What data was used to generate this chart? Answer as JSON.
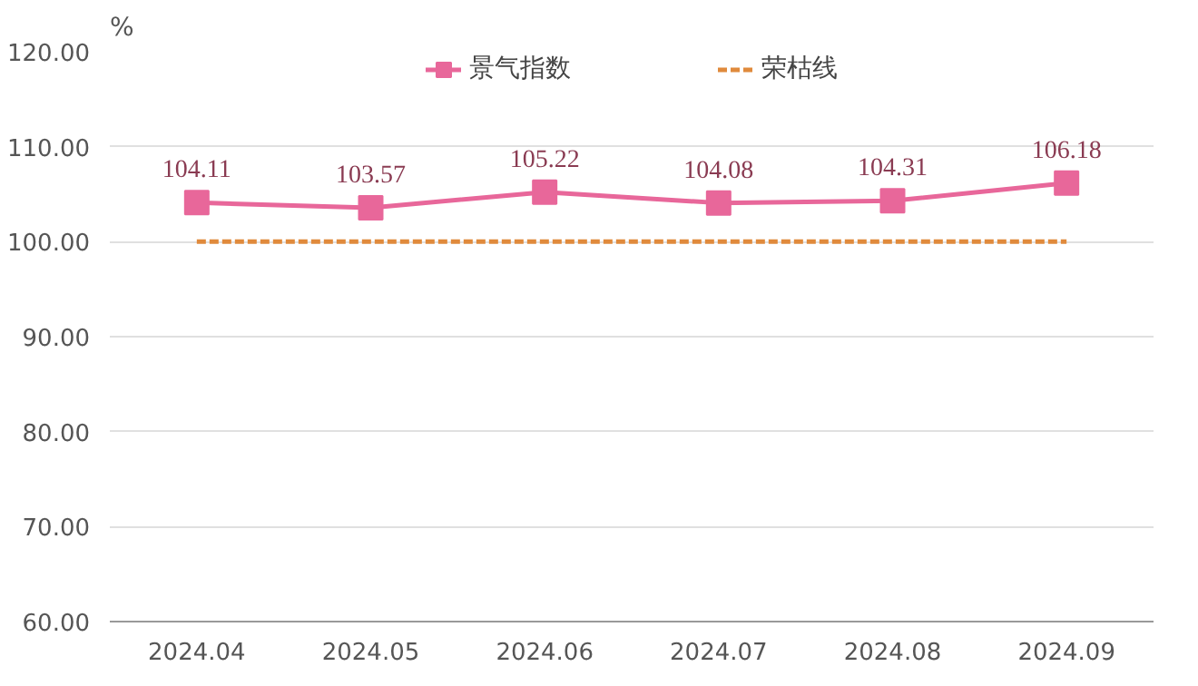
{
  "chart_data": {
    "type": "line",
    "ylabel": "%",
    "categories": [
      "2024.04",
      "2024.05",
      "2024.06",
      "2024.07",
      "2024.08",
      "2024.09"
    ],
    "series": [
      {
        "name": "景气指数",
        "color": "#e8679a",
        "values": [
          104.11,
          103.57,
          105.22,
          104.08,
          104.31,
          106.18
        ],
        "marker": "square",
        "line_style": "solid",
        "value_labels": [
          "104.11",
          "103.57",
          "105.22",
          "104.08",
          "104.31",
          "106.18"
        ]
      },
      {
        "name": "荣枯线",
        "color": "#e08a3c",
        "values": [
          100,
          100,
          100,
          100,
          100,
          100
        ],
        "marker": "none",
        "line_style": "dashed"
      }
    ],
    "ylim": [
      60,
      120
    ],
    "yticks": [
      {
        "value": 60,
        "label": "60.00"
      },
      {
        "value": 70,
        "label": "70.00"
      },
      {
        "value": 80,
        "label": "80.00"
      },
      {
        "value": 90,
        "label": "90.00"
      },
      {
        "value": 100,
        "label": "100.00"
      },
      {
        "value": 110,
        "label": "110.00"
      },
      {
        "value": 120,
        "label": "120.00"
      }
    ],
    "grid": "y",
    "legend": "top"
  }
}
